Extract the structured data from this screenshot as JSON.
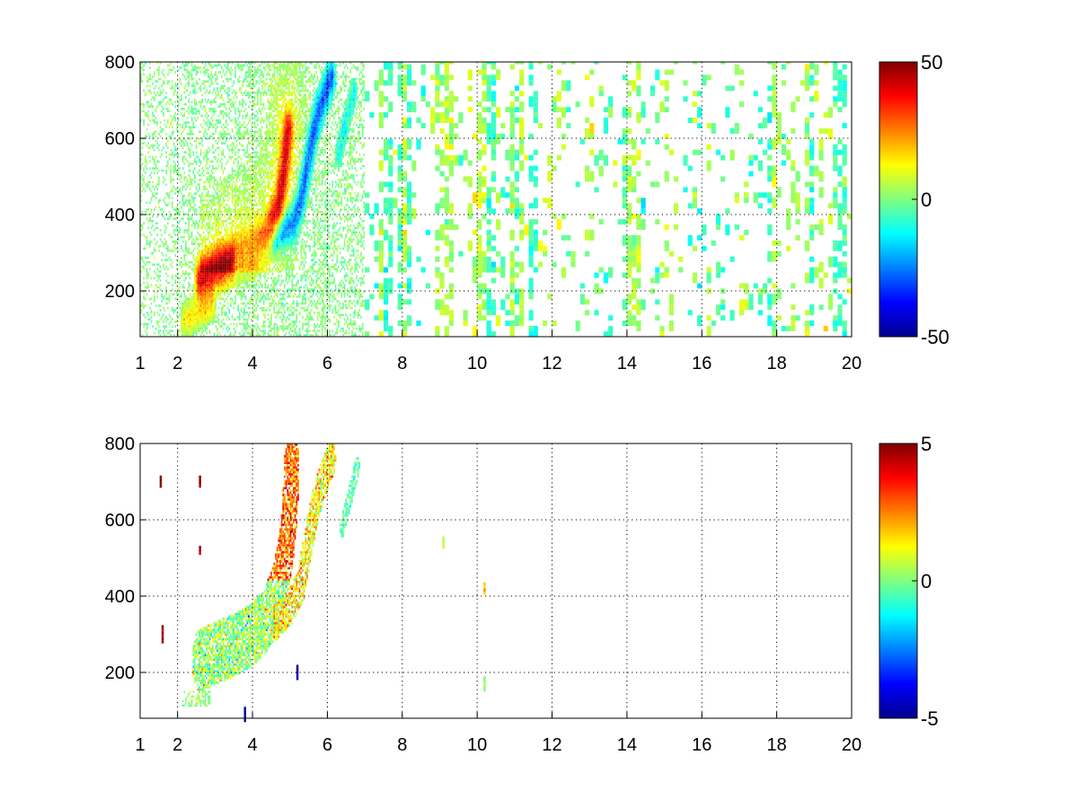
{
  "chart_data": [
    {
      "type": "heatmap",
      "title": "",
      "xlabel": "",
      "ylabel": "",
      "xlim": [
        1,
        20
      ],
      "ylim": [
        80,
        800
      ],
      "xticks": [
        1,
        2,
        4,
        6,
        8,
        10,
        12,
        14,
        16,
        18,
        20
      ],
      "xtick_labels": [
        "1",
        "2",
        "4",
        "6",
        "8",
        "10",
        "12",
        "14",
        "16",
        "18",
        "20"
      ],
      "yticks": [
        200,
        400,
        600,
        800
      ],
      "ytick_labels": [
        "200",
        "400",
        "600",
        "800"
      ],
      "grid": true,
      "colormap": "jet",
      "clim": [
        -50,
        50
      ],
      "colorbar_ticks": [
        50,
        0,
        -50
      ],
      "colorbar_tick_labels": [
        "50",
        "0",
        "-50"
      ],
      "features": {
        "positive_ridge": [
          [
            2.6,
            230
          ],
          [
            3.0,
            255
          ],
          [
            3.5,
            280
          ],
          [
            4.0,
            300
          ],
          [
            4.4,
            340
          ],
          [
            4.7,
            420
          ],
          [
            4.85,
            520
          ],
          [
            4.95,
            620
          ]
        ],
        "positive_ridge_peak": 42,
        "negative_ridge": [
          [
            3.6,
            280
          ],
          [
            4.2,
            310
          ],
          [
            4.7,
            345
          ],
          [
            5.1,
            380
          ],
          [
            5.3,
            440
          ],
          [
            5.45,
            520
          ],
          [
            5.6,
            600
          ],
          [
            5.8,
            680
          ],
          [
            6.1,
            760
          ]
        ],
        "negative_ridge_peak": -30,
        "low_branch": [
          [
            2.2,
            125
          ],
          [
            2.5,
            140
          ],
          [
            2.9,
            165
          ]
        ],
        "low_branch_peak": 14,
        "secondary_feature": [
          [
            6.3,
            560
          ],
          [
            6.5,
            640
          ],
          [
            6.7,
            720
          ]
        ],
        "secondary_peak": -12,
        "background_noise_range": [
          -8,
          12
        ]
      }
    },
    {
      "type": "heatmap",
      "title": "",
      "xlabel": "",
      "ylabel": "",
      "xlim": [
        1,
        20
      ],
      "ylim": [
        80,
        800
      ],
      "xticks": [
        1,
        2,
        4,
        6,
        8,
        10,
        12,
        14,
        16,
        18,
        20
      ],
      "xtick_labels": [
        "1",
        "2",
        "4",
        "6",
        "8",
        "10",
        "12",
        "14",
        "16",
        "18",
        "20"
      ],
      "yticks": [
        200,
        400,
        600,
        800
      ],
      "ytick_labels": [
        "200",
        "400",
        "600",
        "800"
      ],
      "grid": true,
      "colormap": "jet",
      "clim": [
        -5,
        5
      ],
      "colorbar_ticks": [
        5,
        0,
        -5
      ],
      "colorbar_tick_labels": [
        "5",
        "0",
        "-5"
      ],
      "features": {
        "main_band": [
          [
            2.6,
            230
          ],
          [
            3.0,
            250
          ],
          [
            3.5,
            270
          ],
          [
            4.0,
            300
          ],
          [
            4.4,
            340
          ],
          [
            4.7,
            420
          ],
          [
            4.9,
            520
          ],
          [
            5.0,
            620
          ],
          [
            5.05,
            740
          ]
        ],
        "band_value": 0.2,
        "upper_band_value": 2.8,
        "right_band": [
          [
            4.6,
            330
          ],
          [
            5.0,
            370
          ],
          [
            5.3,
            430
          ],
          [
            5.45,
            520
          ],
          [
            5.6,
            600
          ],
          [
            5.8,
            680
          ],
          [
            6.1,
            760
          ]
        ],
        "right_band_value": 1.4,
        "secondary_feature": [
          [
            6.4,
            580
          ],
          [
            6.6,
            660
          ],
          [
            6.8,
            740
          ]
        ],
        "secondary_value": -0.4,
        "isolated_spots": [
          {
            "x": 9.1,
            "y": 540,
            "v": 0.5
          },
          {
            "x": 10.2,
            "y": 420,
            "v": 2.0
          },
          {
            "x": 10.2,
            "y": 170,
            "v": 0.3
          },
          {
            "x": 2.6,
            "y": 700,
            "v": 5.0
          },
          {
            "x": 2.6,
            "y": 520,
            "v": 4.5
          },
          {
            "x": 1.55,
            "y": 700,
            "v": 5.0
          },
          {
            "x": 1.6,
            "y": 300,
            "v": 5.0
          },
          {
            "x": 5.2,
            "y": 200,
            "v": -4.5
          },
          {
            "x": 3.8,
            "y": 90,
            "v": -5.0
          }
        ]
      }
    }
  ]
}
